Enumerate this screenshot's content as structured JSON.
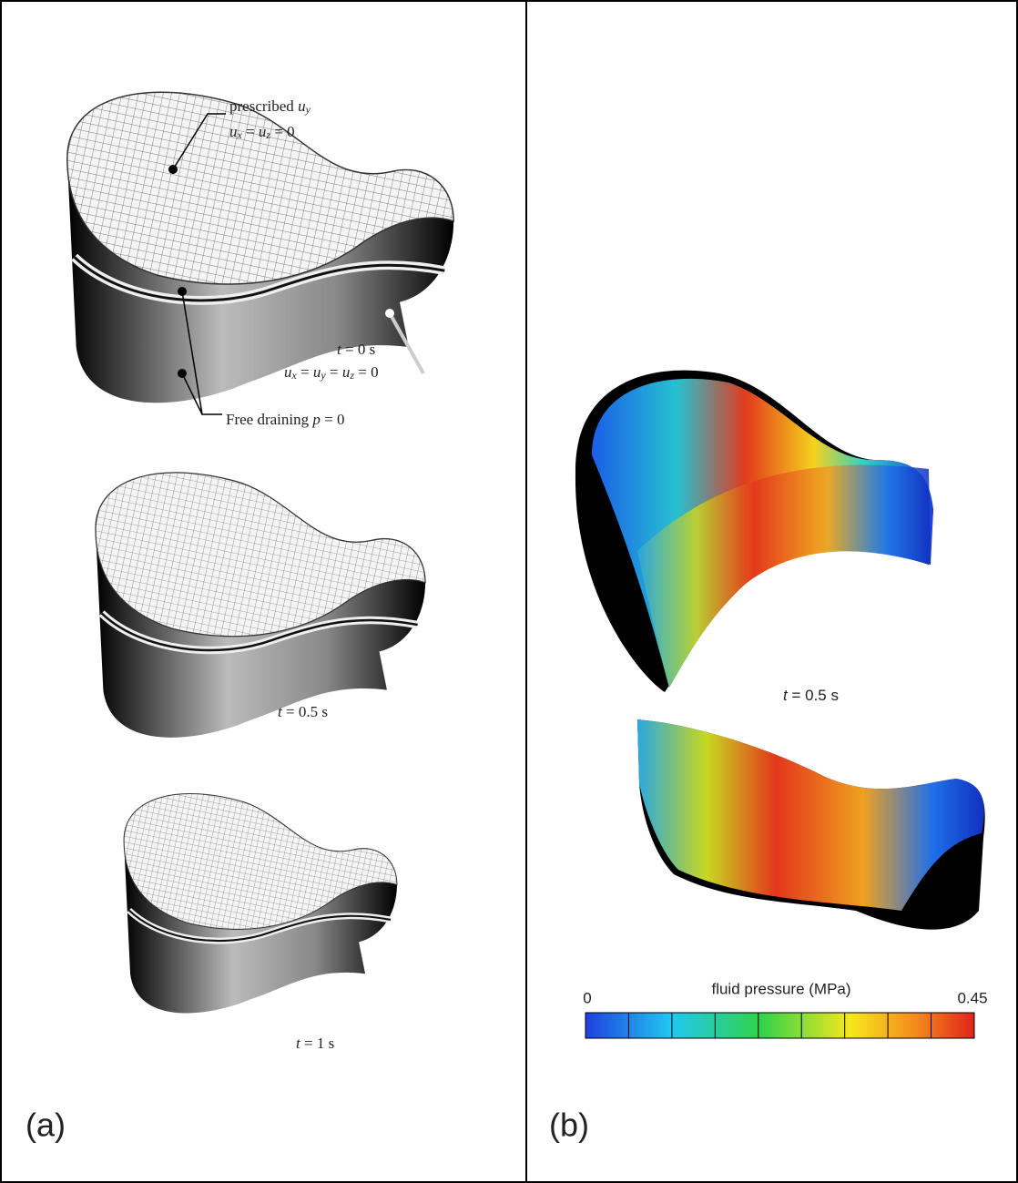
{
  "panel_a": {
    "label": "(a)",
    "annotations": {
      "prescribed": [
        {
          "t": "prescribed "
        },
        {
          "t": "u",
          "i": true
        },
        {
          "t": "y",
          "i": true,
          "s": true
        }
      ],
      "fixed_xz": [
        {
          "t": "u",
          "i": true
        },
        {
          "t": "x",
          "i": true,
          "s": true
        },
        {
          "t": " = "
        },
        {
          "t": "u",
          "i": true
        },
        {
          "t": "z",
          "i": true,
          "s": true
        },
        {
          "t": " = 0"
        }
      ],
      "fixed_all": [
        {
          "t": "u",
          "i": true
        },
        {
          "t": "x",
          "i": true,
          "s": true
        },
        {
          "t": " = "
        },
        {
          "t": "u",
          "i": true
        },
        {
          "t": "y",
          "i": true,
          "s": true
        },
        {
          "t": " = "
        },
        {
          "t": "u",
          "i": true
        },
        {
          "t": "z",
          "i": true,
          "s": true
        },
        {
          "t": " = 0"
        }
      ],
      "draining": [
        {
          "t": "Free draining "
        },
        {
          "t": "p",
          "i": true
        },
        {
          "t": " = 0"
        }
      ]
    },
    "times": [
      [
        {
          "t": "t",
          "i": true
        },
        {
          "t": " = 0 s"
        }
      ],
      [
        {
          "t": "t",
          "i": true
        },
        {
          "t": " = 0.5 s"
        }
      ],
      [
        {
          "t": "t",
          "i": true
        },
        {
          "t": " = 1 s"
        }
      ]
    ]
  },
  "panel_b": {
    "label": "(b)",
    "time": [
      {
        "t": "t",
        "i": true
      },
      {
        "t": " = 0.5 s"
      }
    ],
    "colorbar": {
      "title": "fluid pressure (MPa)",
      "min": 0,
      "max": 0.45
    }
  }
}
